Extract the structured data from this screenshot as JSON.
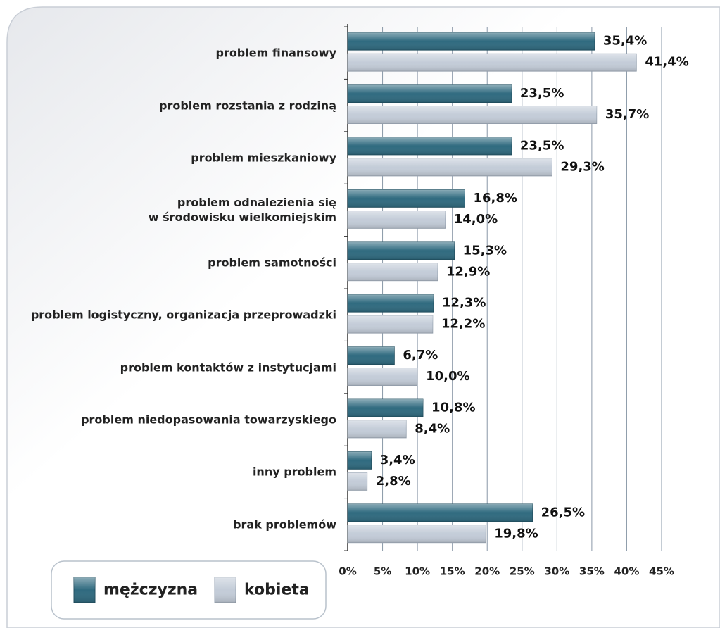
{
  "chart_data": {
    "type": "bar",
    "orientation": "horizontal",
    "categories": [
      "problem finansowy",
      "problem rozstania z rodziną",
      "problem mieszkaniowy",
      "problem odnalezienia się\nw środowisku wielkomiejskim",
      "problem samotności",
      "problem logistyczny, organizacja przeprowadzki",
      "problem kontaktów z instytucjami",
      "problem niedopasowania towarzyskiego",
      "inny problem",
      "brak problemów"
    ],
    "series": [
      {
        "name": "mężczyzna",
        "color": "#2f6a7f",
        "values": [
          35.4,
          23.5,
          23.5,
          16.8,
          15.3,
          12.3,
          6.7,
          10.8,
          3.4,
          26.5
        ],
        "value_labels": [
          "35,4%",
          "23,5%",
          "23,5%",
          "16,8%",
          "15,3%",
          "12,3%",
          "6,7%",
          "10,8%",
          "3,4%",
          "26,5%"
        ]
      },
      {
        "name": "kobieta",
        "color": "#c3ccd8",
        "values": [
          41.4,
          35.7,
          29.3,
          14.0,
          12.9,
          12.2,
          10.0,
          8.4,
          2.8,
          19.8
        ],
        "value_labels": [
          "41,4%",
          "35,7%",
          "29,3%",
          "14,0%",
          "12,9%",
          "12,2%",
          "10,0%",
          "8,4%",
          "2,8%",
          "19,8%"
        ]
      }
    ],
    "xlim": [
      0,
      45
    ],
    "xticks": [
      {
        "value": 0,
        "label": "0%"
      },
      {
        "value": 5,
        "label": "5%"
      },
      {
        "value": 10,
        "label": "10%"
      },
      {
        "value": 15,
        "label": "15%"
      },
      {
        "value": 20,
        "label": "20%"
      },
      {
        "value": 25,
        "label": "25%"
      },
      {
        "value": 30,
        "label": "30%"
      },
      {
        "value": 35,
        "label": "35%"
      },
      {
        "value": 40,
        "label": "40%"
      },
      {
        "value": 45,
        "label": "45%"
      }
    ],
    "grid": true
  }
}
